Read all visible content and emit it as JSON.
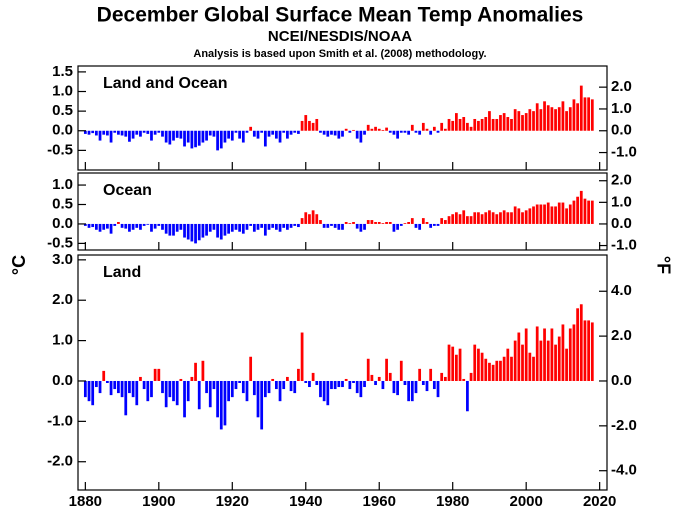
{
  "title": "December Global Surface Mean Temp Anomalies",
  "subtitle": "NCEI/NESDIS/NOAA",
  "note": "Analysis is based upon Smith et al. (2008) methodology.",
  "ylabel": "°C",
  "y2label": "°F",
  "chart_data": [
    {
      "type": "bar",
      "title": "Land and Ocean",
      "positive_color": "#ff0000",
      "negative_color": "#0000ff",
      "x": [
        1880,
        1881,
        1882,
        1883,
        1884,
        1885,
        1886,
        1887,
        1888,
        1889,
        1890,
        1891,
        1892,
        1893,
        1894,
        1895,
        1896,
        1897,
        1898,
        1899,
        1900,
        1901,
        1902,
        1903,
        1904,
        1905,
        1906,
        1907,
        1908,
        1909,
        1910,
        1911,
        1912,
        1913,
        1914,
        1915,
        1916,
        1917,
        1918,
        1919,
        1920,
        1921,
        1922,
        1923,
        1924,
        1925,
        1926,
        1927,
        1928,
        1929,
        1930,
        1931,
        1932,
        1933,
        1934,
        1935,
        1936,
        1937,
        1938,
        1939,
        1940,
        1941,
        1942,
        1943,
        1944,
        1945,
        1946,
        1947,
        1948,
        1949,
        1950,
        1951,
        1952,
        1953,
        1954,
        1955,
        1956,
        1957,
        1958,
        1959,
        1960,
        1961,
        1962,
        1963,
        1964,
        1965,
        1966,
        1967,
        1968,
        1969,
        1970,
        1971,
        1972,
        1973,
        1974,
        1975,
        1976,
        1977,
        1978,
        1979,
        1980,
        1981,
        1982,
        1983,
        1984,
        1985,
        1986,
        1987,
        1988,
        1989,
        1990,
        1991,
        1992,
        1993,
        1994,
        1995,
        1996,
        1997,
        1998,
        1999,
        2000,
        2001,
        2002,
        2003,
        2004,
        2005,
        2006,
        2007,
        2008,
        2009,
        2010,
        2011,
        2012,
        2013,
        2014,
        2015,
        2016,
        2017,
        2018
      ],
      "values": [
        -0.08,
        -0.1,
        -0.06,
        -0.12,
        -0.25,
        -0.1,
        -0.12,
        -0.3,
        -0.05,
        -0.1,
        -0.12,
        -0.15,
        -0.28,
        -0.2,
        -0.1,
        -0.15,
        -0.05,
        -0.08,
        -0.25,
        -0.1,
        -0.05,
        -0.15,
        -0.3,
        -0.35,
        -0.25,
        -0.18,
        -0.2,
        -0.4,
        -0.3,
        -0.45,
        -0.42,
        -0.38,
        -0.3,
        -0.25,
        -0.12,
        -0.15,
        -0.5,
        -0.45,
        -0.3,
        -0.2,
        -0.25,
        -0.05,
        -0.2,
        -0.3,
        -0.05,
        0.1,
        -0.15,
        -0.2,
        -0.05,
        -0.4,
        -0.15,
        -0.1,
        -0.2,
        -0.3,
        -0.05,
        -0.2,
        -0.1,
        -0.05,
        -0.08,
        0.25,
        0.4,
        0.25,
        0.2,
        0.3,
        -0.05,
        -0.1,
        -0.15,
        -0.1,
        -0.12,
        -0.2,
        -0.15,
        0.05,
        -0.05,
        0.02,
        -0.2,
        -0.3,
        -0.1,
        0.15,
        0.05,
        0.1,
        0.05,
        0.02,
        0.08,
        -0.05,
        -0.1,
        -0.2,
        -0.05,
        -0.05,
        -0.1,
        0.15,
        -0.05,
        -0.1,
        0.2,
        0.05,
        -0.1,
        0.1,
        -0.05,
        0.2,
        0.05,
        0.3,
        0.25,
        0.45,
        0.3,
        0.35,
        0.2,
        0.1,
        0.3,
        0.25,
        0.3,
        0.35,
        0.5,
        0.3,
        0.3,
        0.4,
        0.45,
        0.35,
        0.3,
        0.55,
        0.5,
        0.4,
        0.45,
        0.55,
        0.5,
        0.7,
        0.55,
        0.75,
        0.65,
        0.6,
        0.55,
        0.6,
        0.75,
        0.5,
        0.6,
        0.8,
        0.7,
        1.15,
        0.85,
        0.85,
        0.8
      ],
      "xlim": [
        1878,
        2022
      ],
      "xticks": [
        1880,
        1900,
        1920,
        1940,
        1960,
        1980,
        2000,
        2020
      ],
      "ylim": [
        -1.0,
        1.65
      ],
      "yticks": [
        -0.5,
        {
          "value": 0,
          "label": "0.0"
        },
        0.5,
        {
          "value": 1,
          "label": "1.0"
        },
        1.5
      ],
      "y2lim": [
        -1.8,
        2.97
      ],
      "y2ticks": [
        {
          "value": -1,
          "label": "-1.0"
        },
        {
          "value": 0,
          "label": "0.0"
        },
        {
          "value": 1,
          "label": "1.0"
        },
        {
          "value": 2,
          "label": "2.0"
        }
      ]
    },
    {
      "type": "bar",
      "title": "Ocean",
      "positive_color": "#ff0000",
      "negative_color": "#0000ff",
      "x": [
        1880,
        1881,
        1882,
        1883,
        1884,
        1885,
        1886,
        1887,
        1888,
        1889,
        1890,
        1891,
        1892,
        1893,
        1894,
        1895,
        1896,
        1897,
        1898,
        1899,
        1900,
        1901,
        1902,
        1903,
        1904,
        1905,
        1906,
        1907,
        1908,
        1909,
        1910,
        1911,
        1912,
        1913,
        1914,
        1915,
        1916,
        1917,
        1918,
        1919,
        1920,
        1921,
        1922,
        1923,
        1924,
        1925,
        1926,
        1927,
        1928,
        1929,
        1930,
        1931,
        1932,
        1933,
        1934,
        1935,
        1936,
        1937,
        1938,
        1939,
        1940,
        1941,
        1942,
        1943,
        1944,
        1945,
        1946,
        1947,
        1948,
        1949,
        1950,
        1951,
        1952,
        1953,
        1954,
        1955,
        1956,
        1957,
        1958,
        1959,
        1960,
        1961,
        1962,
        1963,
        1964,
        1965,
        1966,
        1967,
        1968,
        1969,
        1970,
        1971,
        1972,
        1973,
        1974,
        1975,
        1976,
        1977,
        1978,
        1979,
        1980,
        1981,
        1982,
        1983,
        1984,
        1985,
        1986,
        1987,
        1988,
        1989,
        1990,
        1991,
        1992,
        1993,
        1994,
        1995,
        1996,
        1997,
        1998,
        1999,
        2000,
        2001,
        2002,
        2003,
        2004,
        2005,
        2006,
        2007,
        2008,
        2009,
        2010,
        2011,
        2012,
        2013,
        2014,
        2015,
        2016,
        2017,
        2018
      ],
      "values": [
        -0.05,
        -0.1,
        -0.08,
        -0.15,
        -0.2,
        -0.15,
        -0.12,
        -0.25,
        -0.05,
        0.05,
        -0.1,
        -0.12,
        -0.2,
        -0.15,
        -0.1,
        -0.15,
        -0.05,
        -0.02,
        -0.2,
        -0.12,
        -0.05,
        -0.15,
        -0.25,
        -0.3,
        -0.3,
        -0.2,
        -0.15,
        -0.35,
        -0.4,
        -0.45,
        -0.5,
        -0.42,
        -0.35,
        -0.3,
        -0.2,
        -0.15,
        -0.35,
        -0.4,
        -0.3,
        -0.25,
        -0.2,
        -0.15,
        -0.2,
        -0.25,
        -0.15,
        -0.05,
        -0.2,
        -0.15,
        -0.1,
        -0.3,
        -0.15,
        -0.1,
        -0.15,
        -0.2,
        -0.1,
        -0.15,
        -0.1,
        -0.05,
        -0.08,
        0.15,
        0.3,
        0.25,
        0.35,
        0.25,
        0.1,
        -0.1,
        -0.1,
        -0.05,
        -0.1,
        -0.15,
        -0.15,
        0.05,
        0.02,
        0.05,
        -0.12,
        -0.2,
        -0.15,
        0.1,
        0.1,
        0.05,
        0.05,
        0.02,
        0.05,
        0.05,
        -0.2,
        -0.15,
        -0.05,
        0.02,
        0.05,
        0.15,
        -0.1,
        -0.15,
        0.15,
        0.05,
        -0.1,
        -0.05,
        -0.05,
        0.15,
        0.1,
        0.2,
        0.25,
        0.3,
        0.25,
        0.35,
        0.2,
        0.2,
        0.3,
        0.3,
        0.25,
        0.3,
        0.35,
        0.3,
        0.25,
        0.3,
        0.35,
        0.3,
        0.3,
        0.45,
        0.4,
        0.3,
        0.35,
        0.4,
        0.45,
        0.5,
        0.5,
        0.5,
        0.55,
        0.45,
        0.45,
        0.55,
        0.55,
        0.4,
        0.5,
        0.6,
        0.7,
        0.85,
        0.65,
        0.6,
        0.6
      ],
      "xlim": [
        1878,
        2022
      ],
      "xticks": [
        1880,
        1900,
        1920,
        1940,
        1960,
        1980,
        2000,
        2020
      ],
      "ylim": [
        -0.67,
        1.31
      ],
      "yticks": [
        -0.5,
        {
          "value": 0,
          "label": "0.0"
        },
        0.5,
        {
          "value": 1,
          "label": "1.0"
        }
      ],
      "y2lim": [
        -1.206,
        2.358
      ],
      "y2ticks": [
        {
          "value": -1,
          "label": "-1.0"
        },
        {
          "value": 0,
          "label": "0.0"
        },
        {
          "value": 1,
          "label": "1.0"
        },
        {
          "value": 2,
          "label": "2.0"
        }
      ]
    },
    {
      "type": "bar",
      "title": "Land",
      "positive_color": "#ff0000",
      "negative_color": "#0000ff",
      "x": [
        1880,
        1881,
        1882,
        1883,
        1884,
        1885,
        1886,
        1887,
        1888,
        1889,
        1890,
        1891,
        1892,
        1893,
        1894,
        1895,
        1896,
        1897,
        1898,
        1899,
        1900,
        1901,
        1902,
        1903,
        1904,
        1905,
        1906,
        1907,
        1908,
        1909,
        1910,
        1911,
        1912,
        1913,
        1914,
        1915,
        1916,
        1917,
        1918,
        1919,
        1920,
        1921,
        1922,
        1923,
        1924,
        1925,
        1926,
        1927,
        1928,
        1929,
        1930,
        1931,
        1932,
        1933,
        1934,
        1935,
        1936,
        1937,
        1938,
        1939,
        1940,
        1941,
        1942,
        1943,
        1944,
        1945,
        1946,
        1947,
        1948,
        1949,
        1950,
        1951,
        1952,
        1953,
        1954,
        1955,
        1956,
        1957,
        1958,
        1959,
        1960,
        1961,
        1962,
        1963,
        1964,
        1965,
        1966,
        1967,
        1968,
        1969,
        1970,
        1971,
        1972,
        1973,
        1974,
        1975,
        1976,
        1977,
        1978,
        1979,
        1980,
        1981,
        1982,
        1983,
        1984,
        1985,
        1986,
        1987,
        1988,
        1989,
        1990,
        1991,
        1992,
        1993,
        1994,
        1995,
        1996,
        1997,
        1998,
        1999,
        2000,
        2001,
        2002,
        2003,
        2004,
        2005,
        2006,
        2007,
        2008,
        2009,
        2010,
        2011,
        2012,
        2013,
        2014,
        2015,
        2016,
        2017,
        2018
      ],
      "values": [
        -0.4,
        -0.5,
        -0.6,
        -0.15,
        -0.3,
        0.25,
        -0.05,
        -0.35,
        -0.2,
        -0.3,
        -0.4,
        -0.85,
        -0.3,
        -0.4,
        -0.6,
        0.1,
        -0.2,
        -0.5,
        -0.4,
        0.3,
        0.3,
        -0.3,
        -0.65,
        -0.4,
        -0.5,
        -0.6,
        0.05,
        -0.9,
        -0.5,
        0.1,
        0.45,
        -0.7,
        0.5,
        -0.3,
        -0.65,
        -0.2,
        -0.9,
        -1.2,
        -1.1,
        -0.5,
        -0.4,
        -0.2,
        -0.05,
        -0.3,
        -0.5,
        0.6,
        -0.35,
        -0.9,
        -1.2,
        -0.4,
        -0.3,
        0.05,
        -0.2,
        -0.5,
        -0.2,
        0.1,
        -0.25,
        -0.3,
        0.3,
        1.2,
        -0.05,
        -0.15,
        0.2,
        -0.1,
        -0.4,
        -0.5,
        -0.6,
        -0.2,
        -0.2,
        -0.15,
        -0.15,
        0.05,
        -0.2,
        -0.05,
        -0.3,
        -0.4,
        -0.15,
        0.55,
        0.15,
        -0.1,
        0.1,
        -0.2,
        0.55,
        0.2,
        -0.3,
        -0.35,
        0.5,
        -0.1,
        -0.5,
        -0.5,
        -0.3,
        0.3,
        -0.1,
        -0.25,
        0.3,
        -0.2,
        -0.4,
        0.2,
        0.1,
        0.9,
        0.85,
        0.65,
        0.8,
        0.05,
        -0.75,
        0.2,
        0.9,
        0.8,
        0.7,
        0.55,
        0.45,
        0.4,
        0.5,
        0.5,
        0.6,
        0.8,
        0.6,
        1.0,
        1.2,
        0.9,
        1.3,
        0.7,
        0.6,
        1.35,
        1.0,
        1.3,
        1.0,
        1.3,
        0.9,
        1.1,
        1.4,
        0.8,
        1.3,
        1.4,
        1.8,
        1.9,
        1.5,
        1.5,
        1.45
      ],
      "xlim": [
        1878,
        2022
      ],
      "xticks": [
        1880,
        1900,
        1920,
        1940,
        1960,
        1980,
        2000,
        2020
      ],
      "ylim": [
        -2.7,
        3.12
      ],
      "yticks": [
        {
          "value": -2,
          "label": "-2.0"
        },
        {
          "value": -1,
          "label": "-1.0"
        },
        {
          "value": 0,
          "label": "0.0"
        },
        {
          "value": 1,
          "label": "1.0"
        },
        {
          "value": 2,
          "label": "2.0"
        },
        {
          "value": 3,
          "label": "3.0"
        }
      ],
      "y2lim": [
        -4.86,
        5.616
      ],
      "y2ticks": [
        {
          "value": -4,
          "label": "-4.0"
        },
        {
          "value": -2,
          "label": "-2.0"
        },
        {
          "value": 0,
          "label": "0.0"
        },
        {
          "value": 2,
          "label": "2.0"
        },
        {
          "value": 4,
          "label": "4.0"
        }
      ]
    }
  ]
}
